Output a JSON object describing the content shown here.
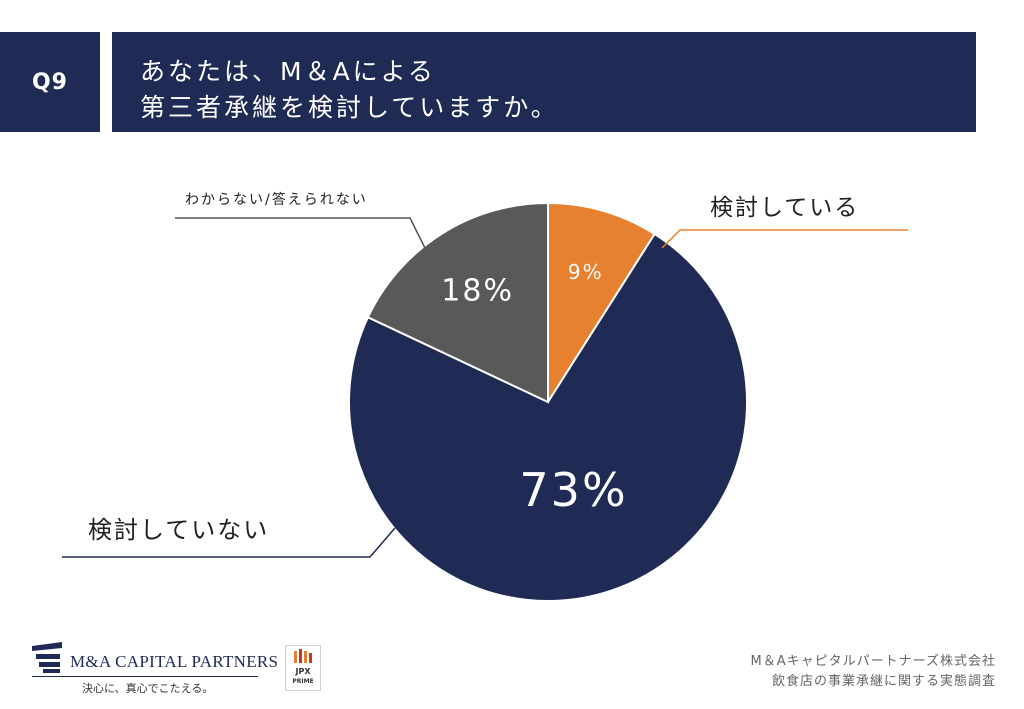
{
  "question": {
    "number": "Q9",
    "title_line1": "あなたは、M＆Aによる",
    "title_line2": "第三者承継を検討していますか。"
  },
  "chart_data": {
    "type": "pie",
    "slices": [
      {
        "label": "検討している",
        "value": 9,
        "value_label": "9%",
        "color": "#e8812f"
      },
      {
        "label": "検討していない",
        "value": 73,
        "value_label": "73%",
        "color": "#1f2a55"
      },
      {
        "label": "わからない/答えられない",
        "value": 18,
        "value_label": "18%",
        "color": "#595959"
      }
    ],
    "start": "12 o'clock",
    "direction": "clockwise",
    "legend": "external callout labels"
  },
  "footer": {
    "logo_name": "M&A CAPITAL PARTNERS",
    "logo_tagline": "決心に、真心でこたえる。",
    "jpx_badge_line1": "JPX",
    "jpx_badge_line2": "PRIME",
    "company": "M＆Aキャピタルパートナーズ株式会社",
    "survey": "飲食店の事業承継に関する実態調査"
  },
  "colors": {
    "navy": "#1f2a55",
    "orange": "#e8812f",
    "gray": "#595959"
  }
}
